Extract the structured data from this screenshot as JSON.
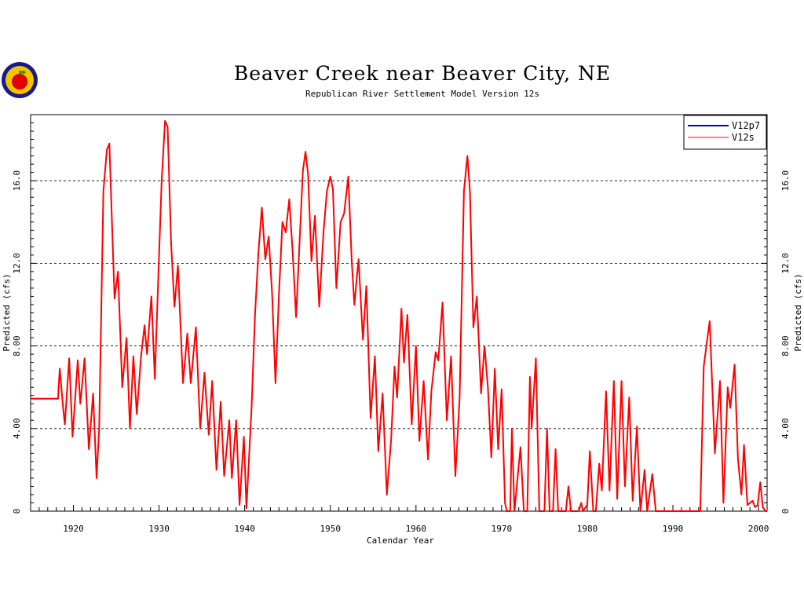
{
  "chart_data": {
    "type": "line",
    "title": "Beaver Creek near Beaver City, NE",
    "subtitle": "Republican River Settlement Model Version 12s",
    "xlabel": "Calendar Year",
    "ylabel": "Predicted (cfs)",
    "ylabel_right": "Predicted (cfs)",
    "xlim": [
      1915,
      2001
    ],
    "ylim": [
      0,
      19.2
    ],
    "x_ticks": [
      1920,
      1930,
      1940,
      1950,
      1960,
      1970,
      1980,
      1990,
      2000
    ],
    "x_tick_labels": [
      "1920",
      "1930",
      "1940",
      "1950",
      "1960",
      "1970",
      "1980",
      "1990",
      "2000"
    ],
    "y_ticks": [
      0,
      4,
      8,
      12,
      16
    ],
    "y_tick_labels": [
      "0",
      "4.00",
      "8.00",
      "12.0",
      "16.0"
    ],
    "grid": "horizontal dashed",
    "legend_position": "top-right",
    "legend": [
      {
        "name": "V12p7",
        "color": "#0000cc"
      },
      {
        "name": "V12s",
        "color": "#ff0000"
      }
    ],
    "series": [
      {
        "name": "V12s",
        "color": "#ff0000",
        "points": [
          [
            1915.0,
            5.45
          ],
          [
            1918.2,
            5.45
          ],
          [
            1918.4,
            6.9
          ],
          [
            1918.8,
            5.0
          ],
          [
            1919.0,
            4.2
          ],
          [
            1919.5,
            7.4
          ],
          [
            1919.9,
            3.6
          ],
          [
            1920.5,
            7.3
          ],
          [
            1920.8,
            5.2
          ],
          [
            1921.3,
            7.4
          ],
          [
            1921.8,
            3.0
          ],
          [
            1922.3,
            5.7
          ],
          [
            1922.7,
            1.6
          ],
          [
            1923.0,
            4.0
          ],
          [
            1923.5,
            15.5
          ],
          [
            1923.9,
            17.5
          ],
          [
            1924.2,
            17.8
          ],
          [
            1924.5,
            14.0
          ],
          [
            1924.8,
            10.3
          ],
          [
            1925.2,
            11.6
          ],
          [
            1925.7,
            6.0
          ],
          [
            1926.2,
            8.4
          ],
          [
            1926.6,
            4.0
          ],
          [
            1927.0,
            7.5
          ],
          [
            1927.4,
            4.7
          ],
          [
            1927.9,
            7.5
          ],
          [
            1928.3,
            9.0
          ],
          [
            1928.6,
            7.6
          ],
          [
            1929.1,
            10.4
          ],
          [
            1929.5,
            6.4
          ],
          [
            1929.8,
            10.0
          ],
          [
            1930.3,
            16.0
          ],
          [
            1930.7,
            18.9
          ],
          [
            1931.0,
            18.6
          ],
          [
            1931.4,
            13.0
          ],
          [
            1931.8,
            9.9
          ],
          [
            1932.2,
            11.9
          ],
          [
            1932.8,
            6.2
          ],
          [
            1933.3,
            8.6
          ],
          [
            1933.7,
            6.2
          ],
          [
            1934.3,
            8.9
          ],
          [
            1934.8,
            4.0
          ],
          [
            1935.3,
            6.7
          ],
          [
            1935.8,
            3.7
          ],
          [
            1936.2,
            6.3
          ],
          [
            1936.7,
            2.0
          ],
          [
            1937.2,
            5.3
          ],
          [
            1937.6,
            1.7
          ],
          [
            1938.2,
            4.4
          ],
          [
            1938.5,
            1.6
          ],
          [
            1939.0,
            4.4
          ],
          [
            1939.4,
            0.3
          ],
          [
            1939.9,
            3.6
          ],
          [
            1940.2,
            0.15
          ],
          [
            1940.8,
            5.0
          ],
          [
            1941.2,
            9.5
          ],
          [
            1941.6,
            12.5
          ],
          [
            1942.0,
            14.7
          ],
          [
            1942.4,
            12.2
          ],
          [
            1942.8,
            13.3
          ],
          [
            1943.2,
            10.5
          ],
          [
            1943.6,
            6.2
          ],
          [
            1944.0,
            10.5
          ],
          [
            1944.4,
            14.0
          ],
          [
            1944.8,
            13.5
          ],
          [
            1945.2,
            15.1
          ],
          [
            1945.6,
            12.5
          ],
          [
            1946.0,
            9.4
          ],
          [
            1946.4,
            13.0
          ],
          [
            1946.8,
            16.5
          ],
          [
            1947.1,
            17.4
          ],
          [
            1947.4,
            16.3
          ],
          [
            1947.8,
            12.1
          ],
          [
            1948.2,
            14.3
          ],
          [
            1948.7,
            9.9
          ],
          [
            1949.2,
            13.5
          ],
          [
            1949.6,
            15.5
          ],
          [
            1950.0,
            16.2
          ],
          [
            1950.3,
            15.6
          ],
          [
            1950.7,
            10.8
          ],
          [
            1951.2,
            14.0
          ],
          [
            1951.6,
            14.4
          ],
          [
            1952.1,
            16.2
          ],
          [
            1952.5,
            12.1
          ],
          [
            1952.8,
            10.0
          ],
          [
            1953.3,
            12.2
          ],
          [
            1953.8,
            8.3
          ],
          [
            1954.2,
            10.9
          ],
          [
            1954.7,
            4.5
          ],
          [
            1955.2,
            7.5
          ],
          [
            1955.6,
            2.9
          ],
          [
            1956.1,
            5.7
          ],
          [
            1956.6,
            0.8
          ],
          [
            1957.1,
            3.5
          ],
          [
            1957.5,
            7.0
          ],
          [
            1957.8,
            5.5
          ],
          [
            1958.3,
            9.8
          ],
          [
            1958.6,
            7.2
          ],
          [
            1959.0,
            9.5
          ],
          [
            1959.5,
            4.2
          ],
          [
            1960.0,
            8.0
          ],
          [
            1960.4,
            3.4
          ],
          [
            1960.9,
            6.3
          ],
          [
            1961.4,
            2.5
          ],
          [
            1961.8,
            5.8
          ],
          [
            1962.3,
            7.7
          ],
          [
            1962.6,
            7.3
          ],
          [
            1963.1,
            10.1
          ],
          [
            1963.6,
            4.4
          ],
          [
            1964.1,
            7.5
          ],
          [
            1964.6,
            1.7
          ],
          [
            1965.1,
            5.5
          ],
          [
            1965.6,
            15.5
          ],
          [
            1966.0,
            17.2
          ],
          [
            1966.3,
            15.5
          ],
          [
            1966.7,
            8.9
          ],
          [
            1967.1,
            10.4
          ],
          [
            1967.6,
            5.7
          ],
          [
            1968.0,
            8.0
          ],
          [
            1968.4,
            6.0
          ],
          [
            1968.8,
            2.6
          ],
          [
            1969.2,
            6.9
          ],
          [
            1969.6,
            3.0
          ],
          [
            1970.0,
            5.9
          ],
          [
            1970.4,
            0.4
          ],
          [
            1970.6,
            0.0
          ],
          [
            1971.0,
            0.0
          ],
          [
            1971.2,
            4.0
          ],
          [
            1971.5,
            0.0
          ],
          [
            1972.2,
            3.1
          ],
          [
            1972.6,
            0.0
          ],
          [
            1973.0,
            0.0
          ],
          [
            1973.3,
            6.5
          ],
          [
            1973.5,
            4.0
          ],
          [
            1974.0,
            7.4
          ],
          [
            1974.4,
            0.0
          ],
          [
            1975.0,
            0.0
          ],
          [
            1975.3,
            4.0
          ],
          [
            1975.6,
            0.0
          ],
          [
            1976.0,
            0.0
          ],
          [
            1976.3,
            3.0
          ],
          [
            1976.6,
            0.0
          ],
          [
            1977.5,
            0.0
          ],
          [
            1977.8,
            1.2
          ],
          [
            1978.1,
            0.0
          ],
          [
            1979.0,
            0.0
          ],
          [
            1979.3,
            0.4
          ],
          [
            1979.5,
            0.0
          ],
          [
            1980.0,
            0.3
          ],
          [
            1980.3,
            2.9
          ],
          [
            1980.7,
            0.0
          ],
          [
            1981.0,
            0.0
          ],
          [
            1981.4,
            2.3
          ],
          [
            1981.7,
            1.0
          ],
          [
            1982.2,
            5.8
          ],
          [
            1982.6,
            1.0
          ],
          [
            1983.1,
            6.3
          ],
          [
            1983.5,
            0.6
          ],
          [
            1984.0,
            6.3
          ],
          [
            1984.4,
            1.2
          ],
          [
            1984.9,
            5.5
          ],
          [
            1985.3,
            0.5
          ],
          [
            1985.8,
            4.1
          ],
          [
            1986.2,
            0.0
          ],
          [
            1986.7,
            2.0
          ],
          [
            1987.0,
            0.0
          ],
          [
            1987.6,
            1.8
          ],
          [
            1988.0,
            0.0
          ],
          [
            1993.2,
            0.0
          ],
          [
            1993.6,
            7.0
          ],
          [
            1994.0,
            8.3
          ],
          [
            1994.3,
            9.2
          ],
          [
            1994.6,
            6.0
          ],
          [
            1994.9,
            2.8
          ],
          [
            1995.5,
            6.3
          ],
          [
            1995.9,
            0.4
          ],
          [
            1996.4,
            6.0
          ],
          [
            1996.7,
            5.0
          ],
          [
            1997.2,
            7.1
          ],
          [
            1997.6,
            2.5
          ],
          [
            1998.0,
            0.8
          ],
          [
            1998.3,
            3.2
          ],
          [
            1998.7,
            0.3
          ],
          [
            1999.3,
            0.5
          ],
          [
            1999.6,
            0.2
          ],
          [
            1999.9,
            0.3
          ],
          [
            2000.2,
            1.4
          ],
          [
            2000.5,
            0.2
          ],
          [
            2000.8,
            0.0
          ],
          [
            2001.0,
            0.0
          ]
        ]
      }
    ]
  }
}
